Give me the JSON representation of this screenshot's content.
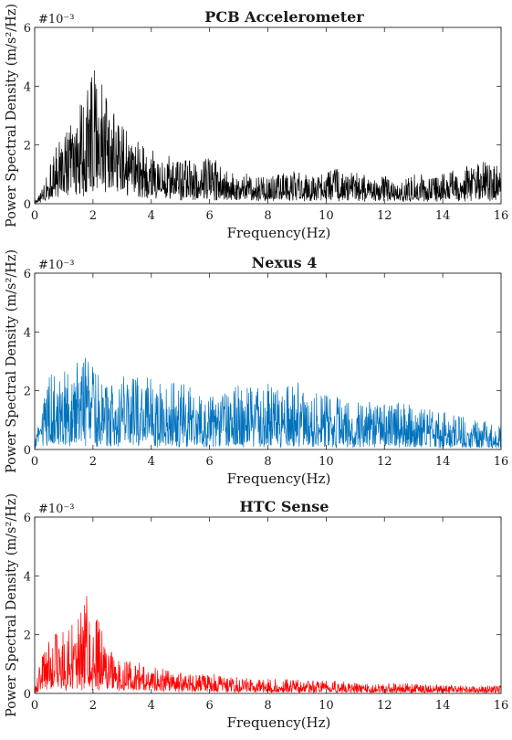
{
  "chart_data": [
    {
      "type": "line",
      "title": "PCB Accelerometer",
      "xlabel": "Frequency(Hz)",
      "ylabel": "Power Spectral Density (m/s²/Hz)",
      "y_multiplier_label": "#10⁻³",
      "xlim": [
        0,
        16
      ],
      "ylim": [
        0,
        6
      ],
      "xticks": [
        0,
        2,
        4,
        6,
        8,
        10,
        12,
        14,
        16
      ],
      "yticks": [
        0,
        2,
        4,
        6
      ],
      "grid": false,
      "series": [
        {
          "color": "#000000",
          "envelope_x": [
            0,
            0.3,
            0.5,
            0.8,
            1.0,
            1.3,
            1.5,
            1.8,
            1.9,
            2.0,
            2.2,
            2.5,
            2.8,
            3.0,
            3.5,
            4.0,
            4.5,
            5.0,
            5.5,
            6.0,
            6.5,
            7.0,
            7.5,
            8.0,
            8.5,
            9.0,
            9.5,
            10.0,
            10.5,
            11.0,
            11.5,
            12.0,
            12.5,
            13.0,
            13.5,
            14.0,
            14.5,
            15.0,
            15.5,
            16.0
          ],
          "envelope_peak": [
            0.05,
            0.6,
            1.5,
            2.2,
            2.6,
            3.0,
            3.4,
            4.6,
            5.4,
            4.9,
            5.3,
            4.2,
            3.2,
            2.9,
            2.3,
            2.0,
            1.8,
            1.7,
            1.6,
            1.8,
            1.2,
            1.1,
            1.0,
            1.0,
            1.1,
            1.2,
            0.9,
            1.3,
            1.2,
            1.1,
            1.0,
            1.0,
            0.9,
            1.0,
            1.1,
            1.1,
            1.3,
            1.4,
            1.5,
            1.4
          ],
          "envelope_base": [
            0.0,
            0.15,
            0.3,
            0.45,
            0.55,
            0.6,
            0.7,
            0.85,
            0.9,
            0.9,
            0.85,
            0.75,
            0.65,
            0.6,
            0.5,
            0.45,
            0.4,
            0.35,
            0.3,
            0.3,
            0.25,
            0.25,
            0.22,
            0.22,
            0.22,
            0.22,
            0.2,
            0.22,
            0.22,
            0.2,
            0.2,
            0.2,
            0.18,
            0.2,
            0.2,
            0.2,
            0.22,
            0.22,
            0.22,
            0.22
          ]
        }
      ]
    },
    {
      "type": "line",
      "title": "Nexus 4",
      "xlabel": "Frequency(Hz)",
      "ylabel": "Power Spectral Density (m/s²/Hz)",
      "y_multiplier_label": "#10⁻³",
      "xlim": [
        0,
        16
      ],
      "ylim": [
        0,
        6
      ],
      "xticks": [
        0,
        2,
        4,
        6,
        8,
        10,
        12,
        14,
        16
      ],
      "yticks": [
        0,
        2,
        4,
        6
      ],
      "grid": false,
      "series": [
        {
          "color": "#0072BD",
          "envelope_x": [
            0,
            0.3,
            0.5,
            1.0,
            1.5,
            1.7,
            2.0,
            2.5,
            3.0,
            3.5,
            3.7,
            4.0,
            4.5,
            5.0,
            5.5,
            6.0,
            6.5,
            7.0,
            7.5,
            8.0,
            8.5,
            9.0,
            9.5,
            10.0,
            10.5,
            11.0,
            11.5,
            12.0,
            12.5,
            13.0,
            13.5,
            14.0,
            14.5,
            15.0,
            15.5,
            16.0
          ],
          "envelope_peak": [
            0.3,
            1.8,
            2.6,
            2.8,
            3.0,
            3.5,
            3.0,
            2.6,
            2.6,
            2.7,
            3.0,
            2.5,
            2.4,
            2.3,
            2.2,
            2.0,
            2.0,
            2.3,
            2.2,
            2.3,
            2.2,
            2.5,
            2.0,
            1.9,
            1.8,
            1.6,
            1.7,
            1.6,
            1.7,
            1.5,
            1.4,
            1.3,
            1.2,
            1.1,
            1.1,
            1.0
          ],
          "envelope_base": [
            0.05,
            0.15,
            0.2,
            0.25,
            0.25,
            0.25,
            0.25,
            0.25,
            0.25,
            0.22,
            0.22,
            0.22,
            0.2,
            0.2,
            0.2,
            0.2,
            0.18,
            0.18,
            0.18,
            0.18,
            0.18,
            0.18,
            0.16,
            0.16,
            0.16,
            0.15,
            0.15,
            0.15,
            0.14,
            0.14,
            0.13,
            0.12,
            0.12,
            0.12,
            0.11,
            0.1
          ]
        }
      ]
    },
    {
      "type": "line",
      "title": "HTC Sense",
      "xlabel": "Frequency(Hz)",
      "ylabel": "Power Spectral Density (m/s²/Hz)",
      "y_multiplier_label": "#10⁻³",
      "xlim": [
        0,
        16
      ],
      "ylim": [
        0,
        6
      ],
      "xticks": [
        0,
        2,
        4,
        6,
        8,
        10,
        12,
        14,
        16
      ],
      "yticks": [
        0,
        2,
        4,
        6
      ],
      "grid": false,
      "series": [
        {
          "color": "#FF0000",
          "envelope_x": [
            0,
            0.3,
            0.5,
            1.0,
            1.5,
            1.8,
            2.0,
            2.3,
            2.5,
            3.0,
            3.5,
            4.0,
            4.5,
            5.0,
            6.0,
            7.0,
            8.0,
            9.0,
            10.0,
            11.0,
            12.0,
            13.0,
            14.0,
            15.0,
            16.0
          ],
          "envelope_peak": [
            0.3,
            1.5,
            2.0,
            2.3,
            2.6,
            3.6,
            2.8,
            2.5,
            1.6,
            1.2,
            1.1,
            1.0,
            0.9,
            0.8,
            0.7,
            0.6,
            0.55,
            0.5,
            0.45,
            0.4,
            0.35,
            0.35,
            0.3,
            0.3,
            0.3
          ],
          "envelope_base": [
            0.02,
            0.15,
            0.2,
            0.25,
            0.28,
            0.3,
            0.28,
            0.25,
            0.2,
            0.18,
            0.15,
            0.14,
            0.12,
            0.1,
            0.09,
            0.08,
            0.07,
            0.06,
            0.06,
            0.05,
            0.05,
            0.05,
            0.05,
            0.05,
            0.05
          ]
        }
      ]
    }
  ]
}
